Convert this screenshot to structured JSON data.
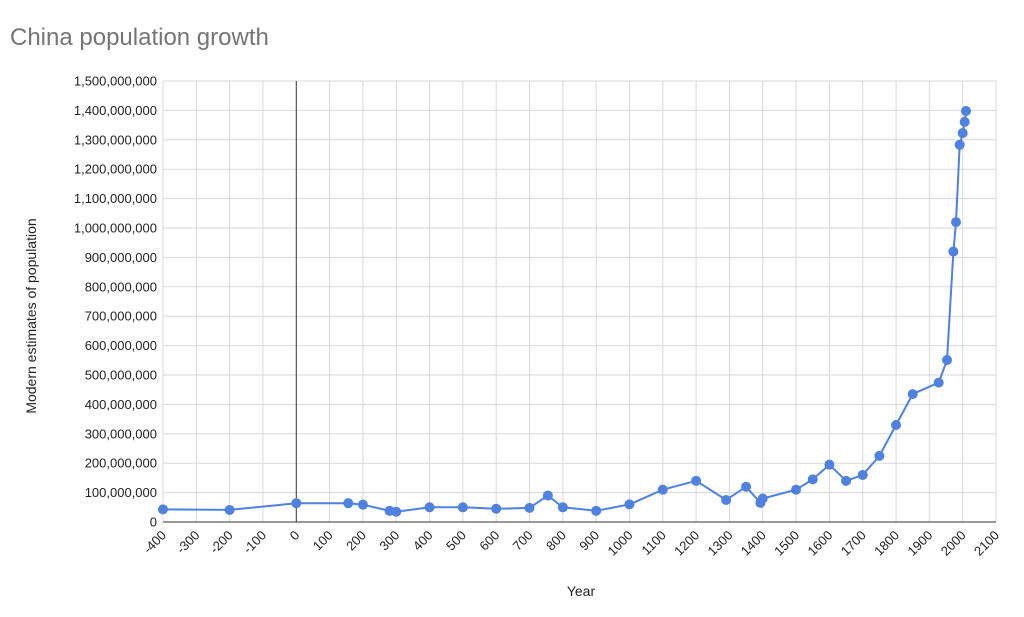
{
  "chart_data": {
    "type": "scatter",
    "title": "China population growth",
    "xlabel": "Year",
    "ylabel": "Modern estimates of population",
    "xlim": [
      -400,
      2100
    ],
    "ylim": [
      0,
      1500000000
    ],
    "grid": true,
    "legend": "none",
    "x_ticks": [
      -400,
      -300,
      -200,
      -100,
      0,
      100,
      200,
      300,
      400,
      500,
      600,
      700,
      800,
      900,
      1000,
      1100,
      1200,
      1300,
      1400,
      1500,
      1600,
      1700,
      1800,
      1900,
      2000,
      2100
    ],
    "x_tick_labels": [
      "-400",
      "-300",
      "-200",
      "-100",
      "0",
      "100",
      "200",
      "300",
      "400",
      "500",
      "600",
      "700",
      "800",
      "900",
      "1000",
      "1100",
      "1200",
      "1300",
      "1400",
      "1500",
      "1600",
      "1700",
      "1800",
      "1900",
      "2000",
      "2100"
    ],
    "y_ticks": [
      0,
      100000000,
      200000000,
      300000000,
      400000000,
      500000000,
      600000000,
      700000000,
      800000000,
      900000000,
      1000000000,
      1100000000,
      1200000000,
      1300000000,
      1400000000,
      1500000000
    ],
    "y_tick_labels": [
      "0",
      "100,000,000",
      "200,000,000",
      "300,000,000",
      "400,000,000",
      "500,000,000",
      "600,000,000",
      "700,000,000",
      "800,000,000",
      "900,000,000",
      "1,000,000,000",
      "1,100,000,000",
      "1,200,000,000",
      "1,300,000,000",
      "1,400,000,000",
      "1,500,000,000"
    ],
    "series": [
      {
        "color": "#4f81e0",
        "x": [
          -400,
          -200,
          0,
          156,
          200,
          280,
          300,
          400,
          500,
          600,
          700,
          755,
          800,
          900,
          1000,
          1100,
          1200,
          1290,
          1350,
          1393,
          1400,
          1500,
          1550,
          1600,
          1650,
          1700,
          1750,
          1800,
          1850,
          1928,
          1953,
          1972,
          1980,
          1991,
          2000,
          2006,
          2010
        ],
        "y": [
          43000000,
          41000000,
          64000000,
          64000000,
          59000000,
          38000000,
          35000000,
          50000000,
          50000000,
          45000000,
          48000000,
          90000000,
          50000000,
          38000000,
          60000000,
          110000000,
          140000000,
          75000000,
          120000000,
          65000000,
          80000000,
          110000000,
          145000000,
          195000000,
          140000000,
          160000000,
          225000000,
          330000000,
          435000000,
          474000000,
          551000000,
          920000000,
          1020000000,
          1283000000,
          1323000000,
          1361000000,
          1398000000
        ]
      }
    ]
  }
}
